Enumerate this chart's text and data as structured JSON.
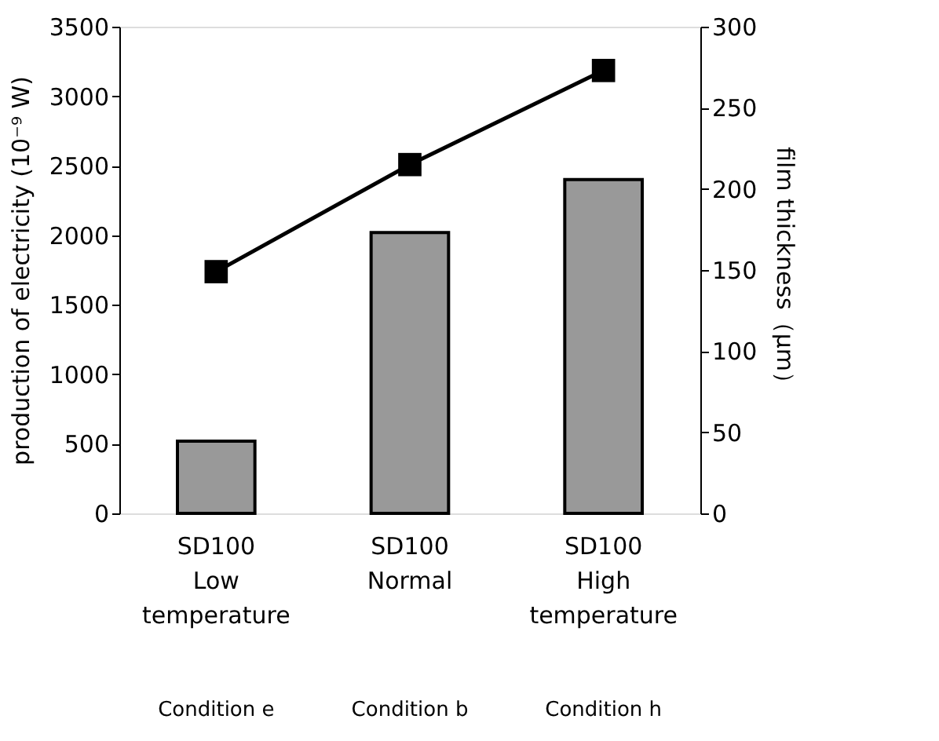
{
  "chart_data": {
    "type": "bar",
    "categories": [
      "SD100\nLow\ntemperature",
      "SD100\nNormal",
      "SD100\nHigh\ntemperature"
    ],
    "series": [
      {
        "color": "#999999",
        "values": [
          520,
          2020,
          2400
        ]
      },
      {
        "type": "line",
        "axis": "y2",
        "color": "#000000",
        "marker": "square",
        "line_style": "solid",
        "values": [
          149,
          215,
          273
        ]
      }
    ],
    "ylabel": "production of electricity (10⁻⁹ W)",
    "y2label": "film thickness（μm）",
    "ylim": [
      0,
      3500
    ],
    "yticks": [
      0,
      500,
      1000,
      1500,
      2000,
      2500,
      3000,
      3500
    ],
    "y2lim": [
      0,
      300
    ],
    "y2ticks": [
      0,
      50,
      100,
      150,
      200,
      250,
      300
    ],
    "annotations": [
      "Condition e",
      "Condition b",
      "Condition h"
    ],
    "grid": false
  }
}
